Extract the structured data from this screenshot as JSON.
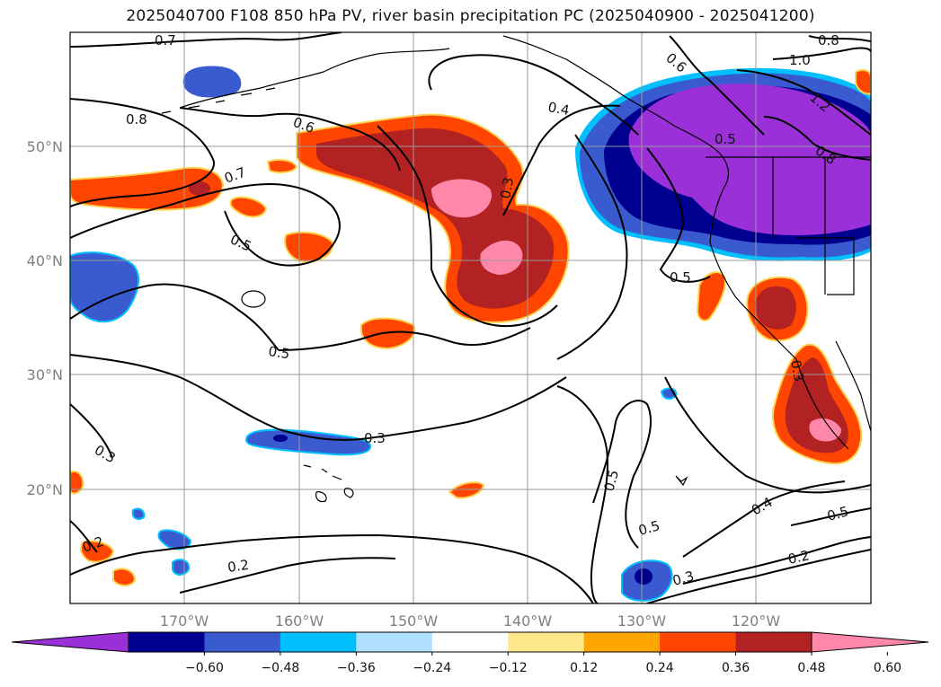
{
  "title": "2025040700 F108 850 hPa PV, river basin precipitation PC (2025040900 - 2025041200)",
  "map": {
    "lon_ticks": [
      "170°W",
      "160°W",
      "150°W",
      "140°W",
      "130°W",
      "120°W"
    ],
    "lat_ticks": [
      "50°N",
      "40°N",
      "30°N",
      "20°N"
    ],
    "grid": true
  },
  "contour_labels": [
    {
      "id": "c1",
      "text": "0.7"
    },
    {
      "id": "c2",
      "text": "0.8"
    },
    {
      "id": "c3",
      "text": "0.6"
    },
    {
      "id": "c4",
      "text": "0.7"
    },
    {
      "id": "c5",
      "text": "0.5"
    },
    {
      "id": "c6",
      "text": "0.4"
    },
    {
      "id": "c7",
      "text": "0.3"
    },
    {
      "id": "c8",
      "text": "0.6"
    },
    {
      "id": "c9",
      "text": "0.8"
    },
    {
      "id": "c10",
      "text": "1.0"
    },
    {
      "id": "c11",
      "text": "1.2"
    },
    {
      "id": "c12",
      "text": "0.5"
    },
    {
      "id": "c13",
      "text": "0.8"
    },
    {
      "id": "c14",
      "text": "0.5"
    },
    {
      "id": "c15",
      "text": "0.5"
    },
    {
      "id": "c16",
      "text": "0.3"
    },
    {
      "id": "c17",
      "text": "0.3"
    },
    {
      "id": "c18",
      "text": "0.5"
    },
    {
      "id": "c19",
      "text": "0.5"
    },
    {
      "id": "c20",
      "text": "0.3"
    },
    {
      "id": "c21",
      "text": "0.4"
    },
    {
      "id": "c22",
      "text": "0.5"
    },
    {
      "id": "c23",
      "text": "0.2"
    },
    {
      "id": "c24",
      "text": "0.2"
    },
    {
      "id": "c25",
      "text": "0.2"
    },
    {
      "id": "c26",
      "text": "0.3"
    }
  ],
  "colorbar": {
    "colors": [
      "#9b30d9",
      "#000090",
      "#3a5bcf",
      "#00bfff",
      "#b0e0ff",
      "#ffffff",
      "#ffe88a",
      "#ffa500",
      "#ff4500",
      "#b22222",
      "#ff88aa"
    ],
    "ticks": [
      "−0.60",
      "−0.48",
      "−0.36",
      "−0.24",
      "−0.12",
      "0.12",
      "0.24",
      "0.36",
      "0.48",
      "0.60"
    ]
  }
}
